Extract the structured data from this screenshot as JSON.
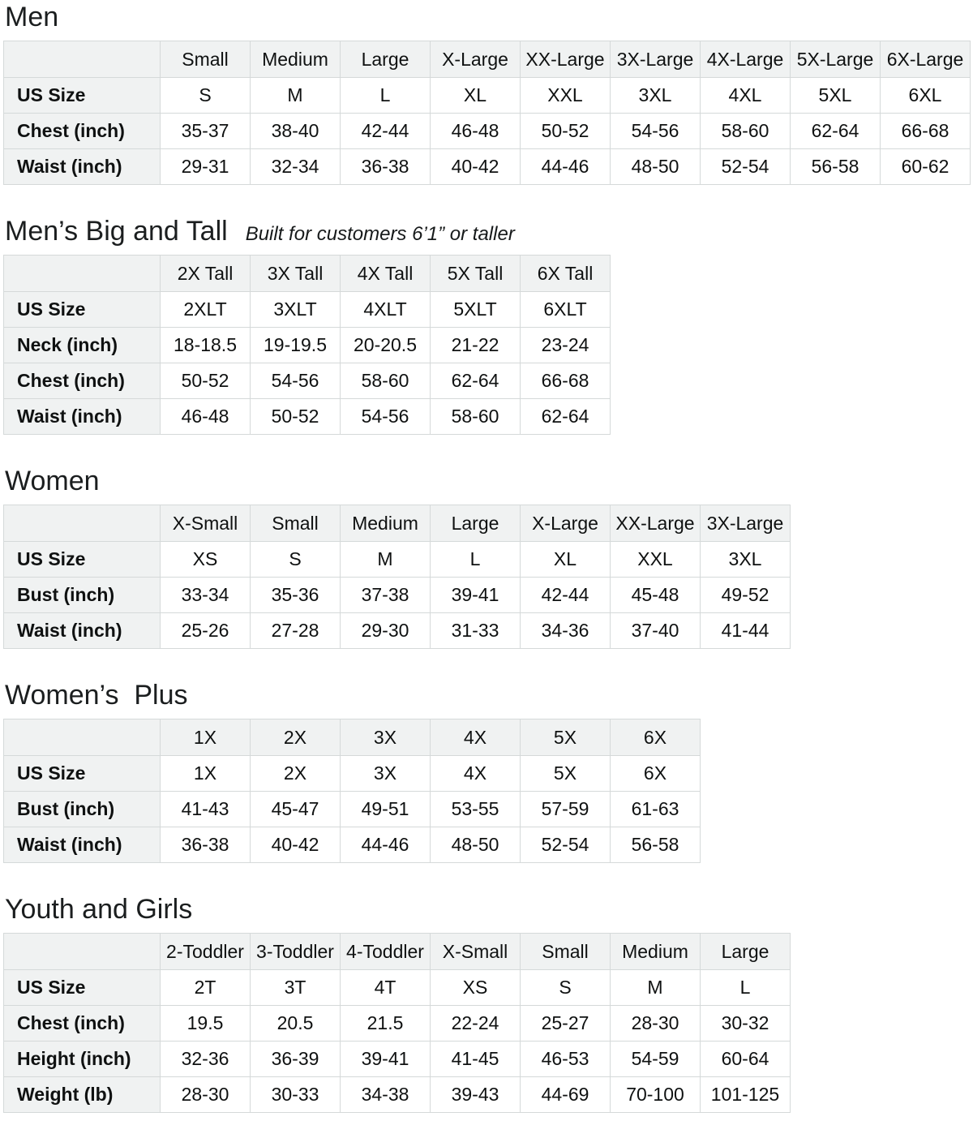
{
  "page": {
    "background_color": "#ffffff",
    "table_border_color": "#d5d9d9",
    "table_header_bg_color": "#f0f2f2",
    "text_color": "#0f1111"
  },
  "sections": [
    {
      "title": "Men",
      "subtitle": "",
      "columns": [
        "Small",
        "Medium",
        "Large",
        "X-Large",
        "XX-Large",
        "3X-Large",
        "4X-Large",
        "5X-Large",
        "6X-Large"
      ],
      "rows": [
        {
          "label": "US Size",
          "values": [
            "S",
            "M",
            "L",
            "XL",
            "XXL",
            "3XL",
            "4XL",
            "5XL",
            "6XL"
          ]
        },
        {
          "label": "Chest (inch)",
          "values": [
            "35-37",
            "38-40",
            "42-44",
            "46-48",
            "50-52",
            "54-56",
            "58-60",
            "62-64",
            "66-68"
          ]
        },
        {
          "label": "Waist (inch)",
          "values": [
            "29-31",
            "32-34",
            "36-38",
            "40-42",
            "44-46",
            "48-50",
            "52-54",
            "56-58",
            "60-62"
          ]
        }
      ]
    },
    {
      "title": "Men’s Big and Tall",
      "subtitle": "Built for customers 6’1” or taller",
      "columns": [
        "2X Tall",
        "3X Tall",
        "4X Tall",
        "5X Tall",
        "6X Tall"
      ],
      "rows": [
        {
          "label": "US Size",
          "values": [
            "2XLT",
            "3XLT",
            "4XLT",
            "5XLT",
            "6XLT"
          ]
        },
        {
          "label": "Neck (inch)",
          "values": [
            "18-18.5",
            "19-19.5",
            "20-20.5",
            "21-22",
            "23-24"
          ]
        },
        {
          "label": "Chest (inch)",
          "values": [
            "50-52",
            "54-56",
            "58-60",
            "62-64",
            "66-68"
          ]
        },
        {
          "label": "Waist (inch)",
          "values": [
            "46-48",
            "50-52",
            "54-56",
            "58-60",
            "62-64"
          ]
        }
      ]
    },
    {
      "title": "Women",
      "subtitle": "",
      "columns": [
        "X-Small",
        "Small",
        "Medium",
        "Large",
        "X-Large",
        "XX-Large",
        "3X-Large"
      ],
      "rows": [
        {
          "label": "US Size",
          "values": [
            "XS",
            "S",
            "M",
            "L",
            "XL",
            "XXL",
            "3XL"
          ]
        },
        {
          "label": "Bust (inch)",
          "values": [
            "33-34",
            "35-36",
            "37-38",
            "39-41",
            "42-44",
            "45-48",
            "49-52"
          ]
        },
        {
          "label": "Waist (inch)",
          "values": [
            "25-26",
            "27-28",
            "29-30",
            "31-33",
            "34-36",
            "37-40",
            "41-44"
          ]
        }
      ]
    },
    {
      "title": "Women’s  Plus",
      "subtitle": "",
      "columns": [
        "1X",
        "2X",
        "3X",
        "4X",
        "5X",
        "6X"
      ],
      "rows": [
        {
          "label": "US Size",
          "values": [
            "1X",
            "2X",
            "3X",
            "4X",
            "5X",
            "6X"
          ]
        },
        {
          "label": "Bust (inch)",
          "values": [
            "41-43",
            "45-47",
            "49-51",
            "53-55",
            "57-59",
            "61-63"
          ]
        },
        {
          "label": "Waist (inch)",
          "values": [
            "36-38",
            "40-42",
            "44-46",
            "48-50",
            "52-54",
            "56-58"
          ]
        }
      ]
    },
    {
      "title": "Youth and Girls",
      "subtitle": "",
      "columns": [
        "2-Toddler",
        "3-Toddler",
        "4-Toddler",
        "X-Small",
        "Small",
        "Medium",
        "Large"
      ],
      "rows": [
        {
          "label": "US Size",
          "values": [
            "2T",
            "3T",
            "4T",
            "XS",
            "S",
            "M",
            "L"
          ]
        },
        {
          "label": "Chest (inch)",
          "values": [
            "19.5",
            "20.5",
            "21.5",
            "22-24",
            "25-27",
            "28-30",
            "30-32"
          ]
        },
        {
          "label": "Height (inch)",
          "values": [
            "32-36",
            "36-39",
            "39-41",
            "41-45",
            "46-53",
            "54-59",
            "60-64"
          ]
        },
        {
          "label": "Weight (lb)",
          "values": [
            "28-30",
            "30-33",
            "34-38",
            "39-43",
            "44-69",
            "70-100",
            "101-125"
          ]
        }
      ]
    }
  ]
}
